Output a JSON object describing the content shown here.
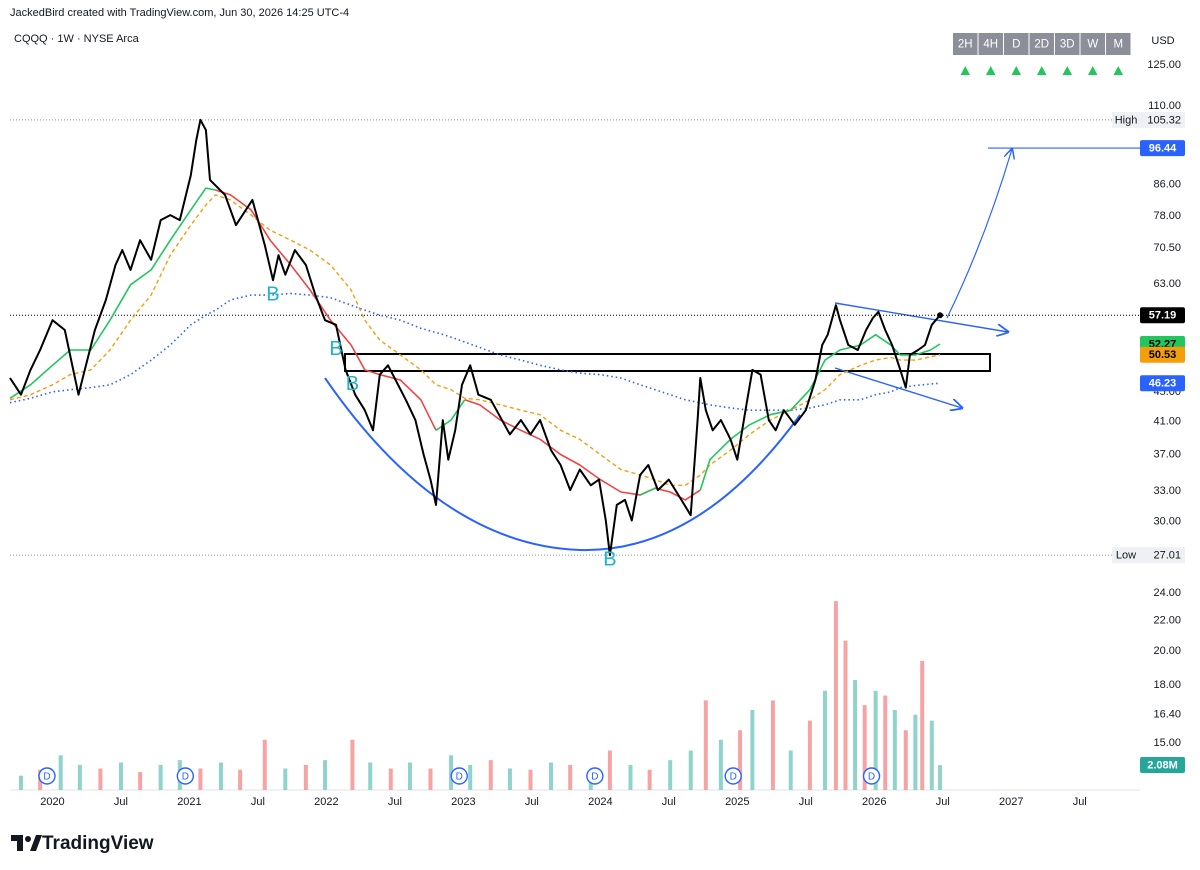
{
  "header": {
    "attribution": "JackedBird created with TradingView.com, Jun 30, 2026 14:25 UTC-4",
    "symbol": "CQQQ · 1W · NYSE Arca",
    "currency": "USD"
  },
  "toolbar": {
    "timeframes": [
      "2H",
      "4H",
      "D",
      "2D",
      "3D",
      "W",
      "M"
    ]
  },
  "footer": {
    "brand": "TradingView"
  },
  "chart_data": {
    "type": "line",
    "log_scale": true,
    "grid": false,
    "xlim": [
      2019.69,
      2027.94
    ],
    "ylim": [
      12.96,
      141.7
    ],
    "xticks": [
      2020,
      {
        "value": 2020.5,
        "label": "Jul"
      },
      2021,
      {
        "value": 2021.5,
        "label": "Jul"
      },
      2022,
      {
        "value": 2022.5,
        "label": "Jul"
      },
      2023,
      {
        "value": 2023.5,
        "label": "Jul"
      },
      2024,
      {
        "value": 2024.5,
        "label": "Jul"
      },
      2025,
      {
        "value": 2025.5,
        "label": "Jul"
      },
      2026,
      {
        "value": 2026.5,
        "label": "Jul"
      },
      2027,
      {
        "value": 2027.5,
        "label": "Jul"
      }
    ],
    "yticks": [
      {
        "value": 125,
        "label": "125.00"
      },
      {
        "value": 110,
        "label": "110.00"
      },
      {
        "value": 86,
        "label": "86.00"
      },
      {
        "value": 78,
        "label": "78.00"
      },
      {
        "value": 70.5,
        "label": "70.50"
      },
      {
        "value": 63,
        "label": "63.00"
      },
      {
        "value": 45,
        "label": "45.00"
      },
      {
        "value": 41,
        "label": "41.00"
      },
      {
        "value": 37,
        "label": "37.00"
      },
      {
        "value": 33,
        "label": "33.00"
      },
      {
        "value": 30,
        "label": "30.00"
      },
      {
        "value": 24,
        "label": "24.00"
      },
      {
        "value": 22,
        "label": "22.00"
      },
      {
        "value": 20,
        "label": "20.00"
      },
      {
        "value": 18,
        "label": "18.00"
      },
      {
        "value": 16.4,
        "label": "16.40"
      },
      {
        "value": 15,
        "label": "15.00"
      }
    ],
    "high_label": "High",
    "low_label": "Low",
    "x": [
      2019.69,
      2019.84,
      2020.0,
      2020.13,
      2020.28,
      2020.42,
      2020.57,
      2020.72,
      2020.86,
      2021.01,
      2021.12,
      2021.19,
      2021.3,
      2021.45,
      2021.59,
      2021.74,
      2021.88,
      2022.03,
      2022.18,
      2022.28,
      2022.39,
      2022.54,
      2022.69,
      2022.8,
      2022.91,
      2023.01,
      2023.12,
      2023.27,
      2023.42,
      2023.56,
      2023.71,
      2023.85,
      2024.0,
      2024.15,
      2024.29,
      2024.4,
      2024.51,
      2024.62,
      2024.73,
      2024.8,
      2024.95,
      2025.09,
      2025.24,
      2025.39,
      2025.53,
      2025.64,
      2025.75,
      2025.9,
      2026.01,
      2026.12,
      2026.19,
      2026.3,
      2026.41,
      2026.48
    ],
    "series": [
      {
        "color": "#000000",
        "width": 2,
        "style": "solid",
        "badge": true,
        "badge_text_color": "#ffffff",
        "x": [
          2019.69,
          2019.77,
          2019.84,
          2019.91,
          2020.0,
          2020.09,
          2020.19,
          2020.31,
          2020.39,
          2020.46,
          2020.51,
          2020.57,
          2020.64,
          2020.72,
          2020.79,
          2020.86,
          2020.93,
          2021.01,
          2021.05,
          2021.08,
          2021.12,
          2021.15,
          2021.26,
          2021.34,
          2021.46,
          2021.55,
          2021.61,
          2021.65,
          2021.7,
          2021.77,
          2021.85,
          2021.92,
          2021.99,
          2022.07,
          2022.14,
          2022.21,
          2022.28,
          2022.34,
          2022.39,
          2022.45,
          2022.58,
          2022.65,
          2022.71,
          2022.76,
          2022.8,
          2022.85,
          2022.89,
          2022.94,
          2022.99,
          2023.05,
          2023.11,
          2023.2,
          2023.34,
          2023.42,
          2023.49,
          2023.56,
          2023.64,
          2023.71,
          2023.78,
          2023.85,
          2023.93,
          2023.99,
          2024.04,
          2024.07,
          2024.12,
          2024.18,
          2024.23,
          2024.29,
          2024.35,
          2024.42,
          2024.5,
          2024.57,
          2024.66,
          2024.71,
          2024.73,
          2024.77,
          2024.82,
          2024.88,
          2024.95,
          2025.0,
          2025.06,
          2025.11,
          2025.17,
          2025.23,
          2025.28,
          2025.34,
          2025.42,
          2025.5,
          2025.57,
          2025.62,
          2025.66,
          2025.72,
          2025.75,
          2025.81,
          2025.88,
          2025.94,
          2025.99,
          2026.03,
          2026.08,
          2026.13,
          2026.19,
          2026.23,
          2026.26,
          2026.32,
          2026.37,
          2026.42,
          2026.48
        ],
        "values": [
          47.0,
          44.6,
          48.2,
          51.3,
          56.3,
          54.6,
          44.6,
          54.6,
          60.0,
          66.9,
          70.1,
          65.9,
          72.3,
          68.0,
          77.0,
          78.2,
          77.0,
          88.6,
          98.9,
          105.32,
          102.0,
          87.3,
          83.3,
          75.8,
          82.0,
          71.2,
          63.8,
          69.0,
          64.9,
          70.1,
          66.9,
          60.9,
          56.3,
          55.5,
          48.2,
          44.6,
          42.5,
          39.9,
          47.5,
          48.9,
          43.9,
          41.2,
          37.0,
          34.2,
          31.6,
          41.2,
          36.4,
          39.9,
          46.0,
          48.9,
          44.6,
          43.9,
          39.4,
          41.2,
          39.4,
          41.2,
          37.5,
          35.8,
          33.1,
          35.3,
          33.6,
          34.2,
          30.1,
          27.01,
          31.6,
          32.1,
          30.1,
          34.7,
          35.8,
          33.1,
          34.2,
          32.6,
          30.6,
          41.2,
          47.0,
          42.5,
          39.9,
          41.2,
          38.8,
          36.4,
          42.5,
          48.2,
          47.5,
          41.2,
          39.9,
          42.5,
          40.6,
          42.5,
          46.7,
          52.1,
          53.8,
          59.0,
          56.3,
          52.1,
          51.3,
          54.6,
          56.7,
          57.8,
          54.6,
          52.1,
          48.2,
          45.6,
          50.5,
          51.3,
          52.1,
          55.5,
          57.19
        ]
      },
      {
        "color": "#22c55e",
        "width": 1.6,
        "style": "solid",
        "badge": true,
        "badge_text_color": "#000000",
        "values": [
          44.1,
          46.0,
          48.9,
          51.3,
          51.3,
          56.3,
          62.9,
          65.9,
          72.3,
          79.5,
          85.1,
          84.6,
          null,
          null,
          null,
          null,
          null,
          null,
          null,
          null,
          null,
          null,
          null,
          39.9,
          41.2,
          43.9,
          null,
          null,
          null,
          null,
          null,
          null,
          null,
          null,
          32.6,
          33.3,
          null,
          null,
          33.1,
          36.4,
          38.8,
          40.6,
          41.9,
          42.5,
          45.3,
          49.7,
          51.3,
          52.1,
          53.8,
          52.1,
          50.5,
          50.5,
          51.3,
          52.27
        ]
      },
      {
        "color": "#ef4444",
        "width": 1.6,
        "style": "solid",
        "badge": false,
        "values": [
          null,
          null,
          null,
          null,
          null,
          null,
          null,
          null,
          null,
          null,
          null,
          84.6,
          83.3,
          79.5,
          72.3,
          66.9,
          61.9,
          56.3,
          52.1,
          48.2,
          47.5,
          46.7,
          43.9,
          39.9,
          null,
          43.9,
          43.2,
          41.2,
          39.9,
          38.8,
          37.0,
          35.8,
          34.2,
          32.9,
          32.6,
          33.3,
          32.9,
          32.1,
          33.1,
          null,
          null,
          null,
          null,
          null,
          null,
          null,
          null,
          null,
          null,
          null,
          null,
          null,
          null,
          null
        ]
      },
      {
        "color": "#f59e0b",
        "width": 1.4,
        "style": "dashed",
        "badge": true,
        "badge_text_color": "#000000",
        "values": [
          43.9,
          44.6,
          46.0,
          47.5,
          48.2,
          51.3,
          56.3,
          60.9,
          69.0,
          75.8,
          80.7,
          83.3,
          82.0,
          78.2,
          74.6,
          72.3,
          70.1,
          66.9,
          61.9,
          56.3,
          52.9,
          50.5,
          48.2,
          46.0,
          45.3,
          44.1,
          43.9,
          43.2,
          42.5,
          41.9,
          39.9,
          38.8,
          37.0,
          35.3,
          34.7,
          34.2,
          33.6,
          33.6,
          34.7,
          35.8,
          37.5,
          39.4,
          41.2,
          42.5,
          43.9,
          45.3,
          47.5,
          48.9,
          49.7,
          50.1,
          49.7,
          49.7,
          50.2,
          50.53
        ]
      },
      {
        "color": "#2962ff",
        "width": 1.6,
        "style": "dotted",
        "badge": true,
        "badge_text_color": "#ffffff",
        "values": [
          43.5,
          44.1,
          45.0,
          45.3,
          45.6,
          46.0,
          47.5,
          49.7,
          52.1,
          55.5,
          57.2,
          58.1,
          60.0,
          60.9,
          60.9,
          61.2,
          60.9,
          60.4,
          59.0,
          58.1,
          57.2,
          56.3,
          54.9,
          54.2,
          53.4,
          52.6,
          51.7,
          50.5,
          49.7,
          48.9,
          48.2,
          47.7,
          47.5,
          47.0,
          46.0,
          45.3,
          44.6,
          43.9,
          43.5,
          43.2,
          42.8,
          42.5,
          42.5,
          42.5,
          42.8,
          43.2,
          43.9,
          43.9,
          44.6,
          45.0,
          45.6,
          45.9,
          46.1,
          46.23
        ]
      }
    ],
    "volume": {
      "vlim": [
        0,
        64
      ],
      "value_label": "2.08M",
      "badge_color": "#26a69a",
      "x": [
        2019.77,
        2019.91,
        2020.06,
        2020.2,
        2020.35,
        2020.5,
        2020.64,
        2020.79,
        2020.93,
        2021.08,
        2021.23,
        2021.37,
        2021.55,
        2021.7,
        2021.85,
        2021.99,
        2022.19,
        2022.32,
        2022.47,
        2022.61,
        2022.76,
        2022.91,
        2023.05,
        2023.2,
        2023.34,
        2023.49,
        2023.64,
        2023.78,
        2023.93,
        2024.07,
        2024.22,
        2024.36,
        2024.51,
        2024.66,
        2024.77,
        2024.88,
        2025.02,
        2025.11,
        2025.26,
        2025.39,
        2025.53,
        2025.64,
        2025.72,
        2025.79,
        2025.86,
        2025.93,
        2026.01,
        2026.08,
        2026.15,
        2026.23,
        2026.3,
        2026.35,
        2026.42,
        2026.48
      ],
      "values": [
        1.2,
        1.7,
        2.9,
        2.1,
        1.8,
        2.3,
        1.5,
        2.1,
        2.5,
        1.8,
        2.3,
        1.7,
        4.2,
        1.8,
        2.1,
        2.5,
        4.2,
        2.3,
        1.8,
        2.3,
        1.8,
        2.9,
        2.1,
        2.5,
        1.8,
        1.7,
        2.3,
        2.1,
        1.7,
        3.3,
        2.1,
        1.7,
        2.5,
        3.3,
        7.5,
        4.2,
        5.0,
        6.7,
        7.5,
        3.3,
        5.8,
        8.3,
        15.8,
        12.5,
        9.2,
        7.1,
        8.3,
        7.9,
        6.7,
        5.0,
        6.3,
        10.8,
        5.8,
        2.08
      ],
      "colors": [
        "#8fd3ca",
        "#f5a3a3",
        "#8fd3ca",
        "#8fd3ca",
        "#f5a3a3",
        "#8fd3ca",
        "#f5a3a3",
        "#8fd3ca",
        "#8fd3ca",
        "#f5a3a3",
        "#8fd3ca",
        "#f5a3a3",
        "#f5a3a3",
        "#8fd3ca",
        "#f5a3a3",
        "#8fd3ca",
        "#f5a3a3",
        "#8fd3ca",
        "#f5a3a3",
        "#8fd3ca",
        "#f5a3a3",
        "#8fd3ca",
        "#8fd3ca",
        "#f5a3a3",
        "#8fd3ca",
        "#f5a3a3",
        "#8fd3ca",
        "#f5a3a3",
        "#8fd3ca",
        "#f5a3a3",
        "#8fd3ca",
        "#f5a3a3",
        "#8fd3ca",
        "#8fd3ca",
        "#f5a3a3",
        "#8fd3ca",
        "#f5a3a3",
        "#8fd3ca",
        "#f5a3a3",
        "#8fd3ca",
        "#f5a3a3",
        "#8fd3ca",
        "#f5a3a3",
        "#f5a3a3",
        "#8fd3ca",
        "#f5a3a3",
        "#8fd3ca",
        "#f5a3a3",
        "#8fd3ca",
        "#f5a3a3",
        "#8fd3ca",
        "#f5a3a3",
        "#8fd3ca",
        "#8fd3ca"
      ]
    },
    "target": {
      "value": 96.44,
      "x": 2026.83,
      "color": "#2962ff"
    },
    "annotations": [
      {
        "text": "B",
        "x": 2021.61,
        "y": 60.9
      },
      {
        "text": "B",
        "x": 2022.07,
        "y": 51.3
      },
      {
        "text": "B",
        "x": 2022.19,
        "y": 46.0
      },
      {
        "text": "B",
        "x": 2024.07,
        "y": 26.6
      }
    ],
    "annotation_color": "#1fb3c8",
    "dividends": {
      "label": "D",
      "x": [
        2019.96,
        2020.97,
        2022.97,
        2023.96,
        2024.97,
        2025.98
      ]
    }
  }
}
